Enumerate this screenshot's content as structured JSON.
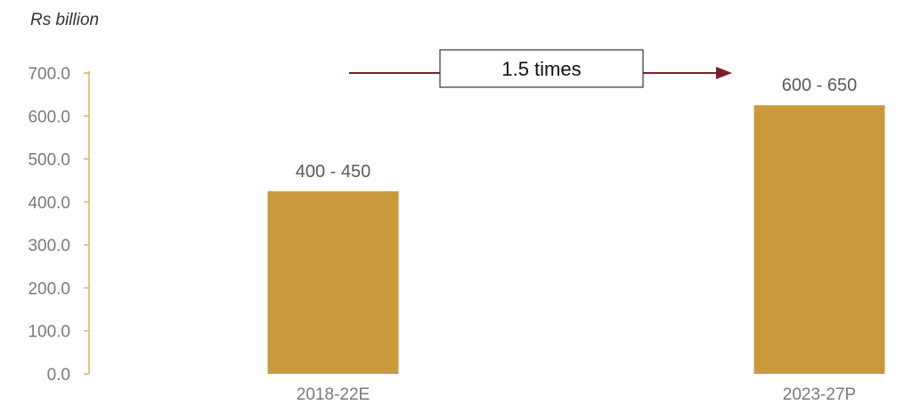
{
  "chart_data": {
    "type": "bar",
    "unit_label": "Rs billion",
    "categories": [
      "2018-22E",
      "2023-27P"
    ],
    "values": [
      425,
      625
    ],
    "data_labels": [
      "400 - 450",
      "600 - 650"
    ],
    "ylim": [
      0,
      700
    ],
    "yticks": [
      "0.0",
      "100.0",
      "200.0",
      "300.0",
      "400.0",
      "500.0",
      "600.0",
      "700.0"
    ],
    "grid": false,
    "annotation": {
      "text": "1.5 times"
    },
    "colors": {
      "bar": "#C89A3C",
      "axis": "#D9B45A",
      "arrow": "#7B1F2B"
    }
  }
}
